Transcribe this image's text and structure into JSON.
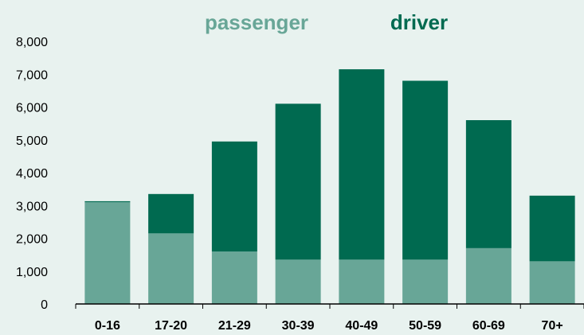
{
  "colors": {
    "background": "#e8f2ef",
    "passenger": "#68a697",
    "driver": "#006a50",
    "axis": "#000000"
  },
  "chart_data": {
    "type": "bar",
    "stacked": true,
    "categories": [
      "0-16",
      "17-20",
      "21-29",
      "30-39",
      "40-49",
      "50-59",
      "60-69",
      "70+"
    ],
    "series": [
      {
        "name": "passenger",
        "values": [
          3100,
          2150,
          1600,
          1350,
          1350,
          1350,
          1700,
          1300
        ]
      },
      {
        "name": "driver",
        "values": [
          30,
          1200,
          3350,
          4750,
          5800,
          5450,
          3900,
          2000
        ]
      }
    ],
    "ylim": [
      0,
      8000
    ],
    "yticks": [
      0,
      1000,
      2000,
      3000,
      4000,
      5000,
      6000,
      7000,
      8000
    ],
    "ytick_labels": [
      "0",
      "1,000",
      "2,000",
      "3,000",
      "4,000",
      "5,000",
      "6,000",
      "7,000",
      "8,000"
    ],
    "grid": false,
    "legend_placement": "top-center"
  }
}
